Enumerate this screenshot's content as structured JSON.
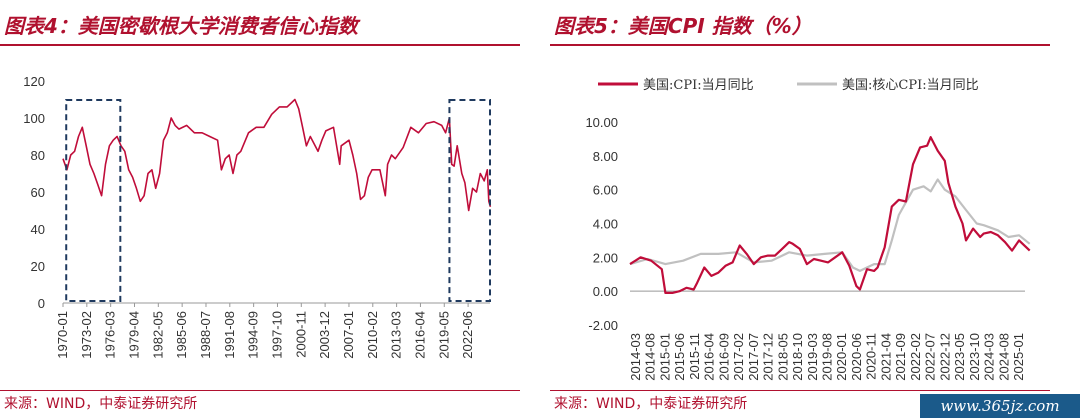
{
  "left": {
    "title": "图表4：美国密歇根大学消费者信心指数",
    "source": "来源：WIND，中泰证券研究所"
  },
  "right": {
    "title": "图表5：美国CPI 指数（%）",
    "source": "来源：WIND，中泰证券研究所"
  },
  "watermark": "www.365jz.com",
  "colors": {
    "brand": "#b0112f",
    "series_red": "#c00d3a",
    "series_gray": "#c0c0c0",
    "box": "#1f3a5f"
  },
  "chart_data": [
    {
      "type": "line",
      "title": "",
      "xlabel": "",
      "ylabel": "",
      "ylim": [
        0,
        120
      ],
      "yticks": [
        0,
        20,
        40,
        60,
        80,
        100,
        120
      ],
      "x_range": [
        "1970-01",
        "2025-04"
      ],
      "xticks": [
        "1970-01",
        "1973-02",
        "1976-03",
        "1979-04",
        "1982-05",
        "1985-06",
        "1988-07",
        "1991-08",
        "1994-09",
        "1997-10",
        "2000-11",
        "2003-12",
        "2007-01",
        "2010-02",
        "2013-03",
        "2016-04",
        "2019-05",
        "2022-06"
      ],
      "grid": false,
      "series": [
        {
          "x": [
            1970.0,
            1970.5,
            1971.0,
            1971.5,
            1972.0,
            1972.5,
            1973.0,
            1973.5,
            1974.0,
            1974.5,
            1975.0,
            1975.5,
            1976.0,
            1976.5,
            1977.0,
            1977.5,
            1978.0,
            1978.5,
            1979.0,
            1979.5,
            1980.0,
            1980.5,
            1981.0,
            1981.5,
            1982.0,
            1982.5,
            1983.0,
            1983.5,
            1984.0,
            1984.5,
            1985.0,
            1986.0,
            1987.0,
            1988.0,
            1989.0,
            1990.0,
            1990.5,
            1991.0,
            1991.5,
            1992.0,
            1992.5,
            1993.0,
            1994.0,
            1995.0,
            1996.0,
            1997.0,
            1998.0,
            1999.0,
            2000.0,
            2000.5,
            2001.0,
            2001.5,
            2002.0,
            2003.0,
            2003.5,
            2004.0,
            2005.0,
            2005.8,
            2006.0,
            2007.0,
            2007.5,
            2008.0,
            2008.5,
            2009.0,
            2009.5,
            2010.0,
            2011.0,
            2011.7,
            2012.0,
            2012.5,
            2013.0,
            2014.0,
            2015.0,
            2016.0,
            2017.0,
            2018.0,
            2019.0,
            2019.5,
            2020.0,
            2020.3,
            2020.6,
            2021.0,
            2021.6,
            2022.0,
            2022.5,
            2023.0,
            2023.5,
            2024.0,
            2024.5,
            2024.9,
            2025.1,
            2025.3
          ],
          "values": [
            78,
            72,
            80,
            82,
            90,
            95,
            85,
            75,
            70,
            64,
            58,
            75,
            85,
            88,
            90,
            85,
            82,
            72,
            68,
            62,
            55,
            58,
            70,
            72,
            62,
            70,
            88,
            92,
            100,
            96,
            94,
            96,
            92,
            92,
            90,
            88,
            72,
            78,
            80,
            70,
            80,
            82,
            92,
            95,
            95,
            102,
            106,
            106,
            110,
            105,
            95,
            85,
            90,
            82,
            88,
            93,
            95,
            75,
            85,
            88,
            80,
            70,
            56,
            58,
            68,
            72,
            72,
            58,
            75,
            80,
            78,
            84,
            95,
            92,
            97,
            98,
            96,
            92,
            100,
            75,
            74,
            85,
            70,
            65,
            50,
            62,
            60,
            70,
            66,
            72,
            55,
            52
          ]
        }
      ],
      "boxes": [
        [
          "1970-06",
          "1977-06"
        ],
        [
          "2020-01",
          "2025-04"
        ]
      ]
    },
    {
      "type": "line",
      "title": "",
      "xlabel": "",
      "ylabel": "",
      "ylim": [
        -2,
        10
      ],
      "yticks": [
        "-2.00",
        "0.00",
        "2.00",
        "4.00",
        "6.00",
        "8.00",
        "10.00"
      ],
      "x_range": [
        "2014-01",
        "2025-03"
      ],
      "xticks": [
        "2014-03",
        "2014-08",
        "2015-01",
        "2015-06",
        "2015-11",
        "2016-04",
        "2016-09",
        "2017-02",
        "2017-07",
        "2017-12",
        "2018-05",
        "2018-10",
        "2019-03",
        "2019-08",
        "2020-01",
        "2020-06",
        "2020-11",
        "2021-04",
        "2021-09",
        "2022-02",
        "2022-07",
        "2022-12",
        "2023-05",
        "2023-10",
        "2024-03",
        "2024-08",
        "2025-01"
      ],
      "legend": "top",
      "grid": false,
      "series": [
        {
          "name": "美国:CPI:当月同比",
          "x": [
            2014.0,
            2014.3,
            2014.6,
            2014.9,
            2015.0,
            2015.2,
            2015.4,
            2015.6,
            2015.8,
            2015.9,
            2016.1,
            2016.3,
            2016.5,
            2016.7,
            2016.9,
            2017.1,
            2017.3,
            2017.5,
            2017.7,
            2017.9,
            2018.1,
            2018.3,
            2018.5,
            2018.6,
            2018.8,
            2019.0,
            2019.2,
            2019.4,
            2019.6,
            2019.8,
            2020.0,
            2020.2,
            2020.4,
            2020.5,
            2020.7,
            2020.9,
            2021.0,
            2021.2,
            2021.4,
            2021.6,
            2021.8,
            2022.0,
            2022.2,
            2022.4,
            2022.5,
            2022.7,
            2022.9,
            2023.0,
            2023.2,
            2023.4,
            2023.5,
            2023.7,
            2023.9,
            2024.0,
            2024.2,
            2024.4,
            2024.6,
            2024.8,
            2025.0,
            2025.1,
            2025.3
          ],
          "values": [
            1.6,
            2.0,
            1.8,
            1.3,
            -0.1,
            -0.1,
            0.0,
            0.2,
            0.1,
            0.5,
            1.4,
            0.9,
            1.1,
            1.5,
            1.7,
            2.7,
            2.2,
            1.6,
            2.0,
            2.1,
            2.1,
            2.5,
            2.9,
            2.8,
            2.5,
            1.6,
            1.9,
            1.8,
            1.7,
            2.0,
            2.3,
            1.5,
            0.3,
            0.1,
            1.3,
            1.2,
            1.4,
            2.6,
            5.0,
            5.4,
            5.3,
            7.5,
            8.5,
            8.6,
            9.1,
            8.3,
            7.7,
            6.4,
            5.0,
            4.0,
            3.0,
            3.7,
            3.2,
            3.4,
            3.5,
            3.3,
            2.9,
            2.4,
            3.0,
            2.8,
            2.4
          ]
        },
        {
          "name": "美国:核心CPI:当月同比",
          "x": [
            2014.0,
            2014.5,
            2015.0,
            2015.5,
            2016.0,
            2016.5,
            2017.0,
            2017.5,
            2018.0,
            2018.5,
            2019.0,
            2019.5,
            2020.0,
            2020.3,
            2020.5,
            2020.9,
            2021.2,
            2021.4,
            2021.6,
            2022.0,
            2022.3,
            2022.5,
            2022.7,
            2022.9,
            2023.2,
            2023.5,
            2023.8,
            2024.0,
            2024.4,
            2024.7,
            2025.0,
            2025.3
          ],
          "values": [
            1.6,
            1.9,
            1.6,
            1.8,
            2.2,
            2.2,
            2.3,
            1.7,
            1.8,
            2.3,
            2.1,
            2.2,
            2.3,
            1.4,
            1.2,
            1.6,
            1.6,
            3.0,
            4.5,
            6.0,
            6.2,
            5.9,
            6.6,
            6.0,
            5.6,
            4.8,
            4.0,
            3.9,
            3.6,
            3.2,
            3.3,
            2.8
          ]
        }
      ]
    }
  ]
}
